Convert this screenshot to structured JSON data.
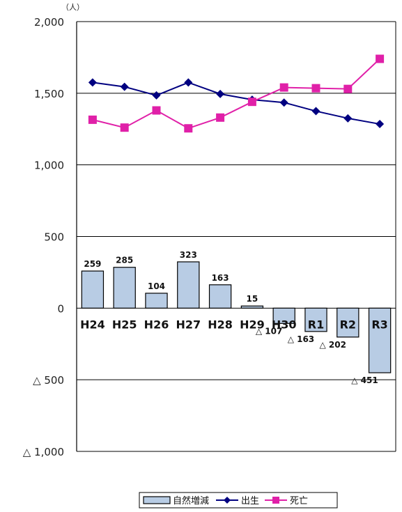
{
  "chart_data": {
    "type": "bar",
    "unit_label": "（人）",
    "categories": [
      "H24",
      "H25",
      "H26",
      "H27",
      "H28",
      "H29",
      "H30",
      "R1",
      "R2",
      "R3"
    ],
    "series": [
      {
        "name": "自然増減",
        "kind": "bar",
        "values": [
          259,
          285,
          104,
          323,
          163,
          15,
          -107,
          -163,
          -202,
          -451
        ],
        "labels": [
          "259",
          "285",
          "104",
          "323",
          "163",
          "15",
          "△ 107",
          "△ 163",
          "△ 202",
          "△ 451"
        ],
        "color": "#b8cce4"
      },
      {
        "name": "出生",
        "kind": "line",
        "marker": "diamond",
        "values": [
          1575,
          1545,
          1485,
          1575,
          1495,
          1455,
          1435,
          1375,
          1325,
          1285
        ],
        "color": "#000080"
      },
      {
        "name": "死亡",
        "kind": "line",
        "marker": "square",
        "values": [
          1315,
          1260,
          1380,
          1255,
          1330,
          1440,
          1540,
          1535,
          1530,
          1740
        ],
        "color": "#e020a8"
      }
    ],
    "ylim": [
      -1000,
      2000
    ],
    "yticks": [
      2000,
      1500,
      1000,
      500,
      0,
      -500,
      -1000
    ],
    "ytick_labels": [
      "2,000",
      "1,500",
      "1,000",
      "500",
      "0",
      "△ 500",
      "△ 1,000"
    ],
    "grid": true,
    "legend_position": "bottom-center",
    "xlabel": "",
    "ylabel": ""
  }
}
